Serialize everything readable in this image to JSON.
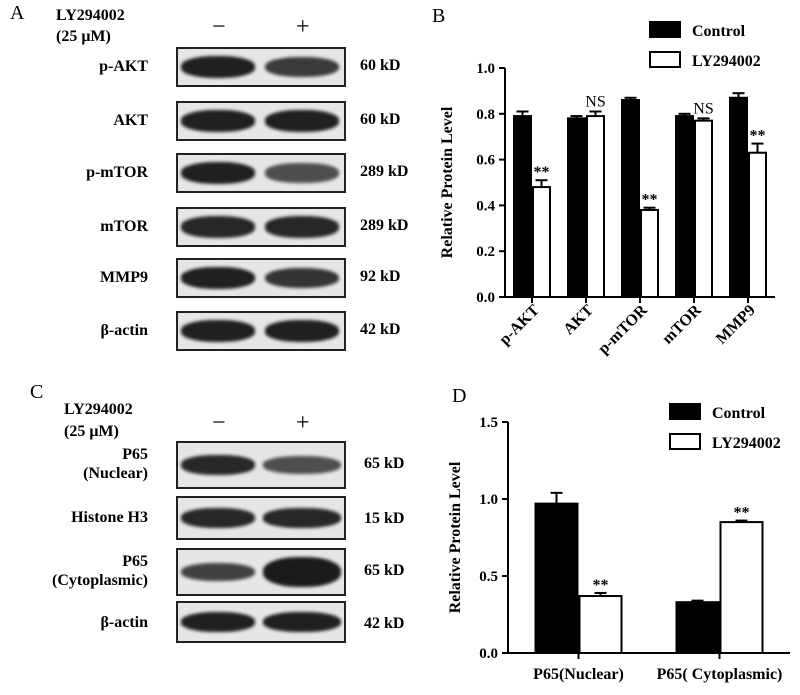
{
  "panels": {
    "A": {
      "letter": "A",
      "treatment_line1": "LY294002",
      "treatment_line2": "(25 μM)",
      "minus": "−",
      "plus": "+",
      "blots": [
        {
          "label": "p-AKT",
          "kd": "60 kD",
          "control_intensity": 0.95,
          "treated_intensity": 0.75
        },
        {
          "label": "AKT",
          "kd": "60 kD",
          "control_intensity": 0.95,
          "treated_intensity": 0.95
        },
        {
          "label": "p-mTOR",
          "kd": "289 kD",
          "control_intensity": 0.95,
          "treated_intensity": 0.6
        },
        {
          "label": "mTOR",
          "kd": "289 kD",
          "control_intensity": 0.9,
          "treated_intensity": 0.9
        },
        {
          "label": "MMP9",
          "kd": "92 kD",
          "control_intensity": 0.95,
          "treated_intensity": 0.8
        },
        {
          "label": "β-actin",
          "kd": "42 kD",
          "control_intensity": 0.95,
          "treated_intensity": 0.95
        }
      ]
    },
    "C": {
      "letter": "C",
      "treatment_line1": "LY294002",
      "treatment_line2": "(25 μM)",
      "minus": "−",
      "plus": "+",
      "blots": [
        {
          "label_line1": "P65",
          "label_line2": "(Nuclear)",
          "kd": "65 kD",
          "control_intensity": 0.9,
          "treated_intensity": 0.6
        },
        {
          "label_line1": "Histone H3",
          "label_line2": "",
          "kd": "15 kD",
          "control_intensity": 0.9,
          "treated_intensity": 0.9
        },
        {
          "label_line1": "P65",
          "label_line2": "(Cytoplasmic)",
          "kd": "65 kD",
          "control_intensity": 0.7,
          "treated_intensity": 1.0
        },
        {
          "label_line1": "β-actin",
          "label_line2": "",
          "kd": "42 kD",
          "control_intensity": 0.95,
          "treated_intensity": 0.95
        }
      ]
    }
  },
  "chart_data": [
    {
      "panel": "B",
      "type": "bar",
      "categories": [
        "p-AKT",
        "AKT",
        "p-mTOR",
        "mTOR",
        "MMP9"
      ],
      "series": [
        {
          "name": "Control",
          "values": [
            0.79,
            0.78,
            0.86,
            0.79,
            0.87
          ],
          "errors": [
            0.02,
            0.01,
            0.01,
            0.01,
            0.02
          ],
          "color": "#000000"
        },
        {
          "name": "LY294002",
          "values": [
            0.48,
            0.79,
            0.38,
            0.77,
            0.63
          ],
          "errors": [
            0.03,
            0.02,
            0.01,
            0.01,
            0.04
          ],
          "color": "#ffffff"
        }
      ],
      "annotations": [
        "**",
        "NS",
        "**",
        "NS",
        "**"
      ],
      "ylabel": "Relative Protein  Level",
      "ylim": [
        0,
        1.0
      ],
      "yticks": [
        "0.0",
        "0.2",
        "0.4",
        "0.6",
        "0.8",
        "1.0"
      ],
      "legend_position": "top-right"
    },
    {
      "panel": "D",
      "type": "bar",
      "categories": [
        "P65(Nuclear)",
        "P65( Cytoplasmic)"
      ],
      "series": [
        {
          "name": "Control",
          "values": [
            0.97,
            0.33
          ],
          "errors": [
            0.07,
            0.01
          ],
          "color": "#000000"
        },
        {
          "name": "LY294002",
          "values": [
            0.37,
            0.85
          ],
          "errors": [
            0.02,
            0.01
          ],
          "color": "#ffffff"
        }
      ],
      "annotations": [
        "**",
        "**"
      ],
      "ylabel": "Relative Protein  Level",
      "ylim": [
        0,
        1.5
      ],
      "yticks": [
        "0.0",
        "0.5",
        "1.0",
        "1.5"
      ],
      "legend_position": "top-right"
    }
  ],
  "panel_letters": {
    "B": "B",
    "D": "D"
  }
}
